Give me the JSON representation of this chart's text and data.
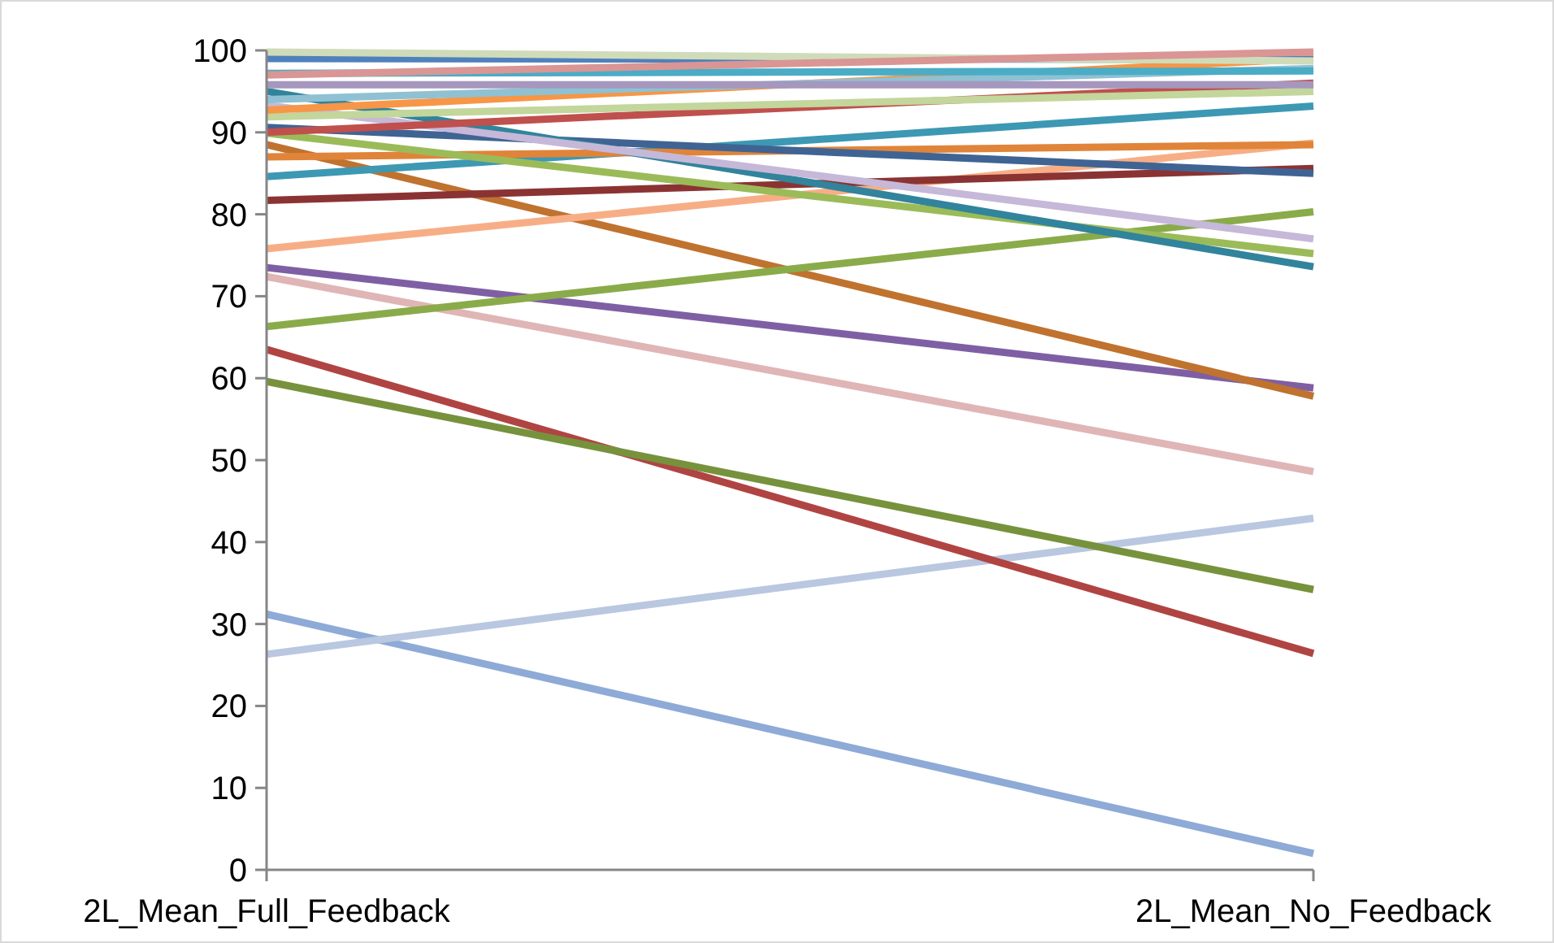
{
  "chart_data": {
    "type": "line",
    "categories": [
      "2L_Mean_Full_Feedback",
      "2L_Mean_No_Feedback"
    ],
    "ylim": [
      0,
      100
    ],
    "yticks": [
      0,
      10,
      20,
      30,
      40,
      50,
      60,
      70,
      80,
      90,
      100
    ],
    "grid": false,
    "marker": "none",
    "line_style": "solid",
    "series": [
      {
        "color": "#8eaad6",
        "values": [
          31.2,
          2
        ]
      },
      {
        "color": "#b9c7e0",
        "values": [
          26.3,
          42.9
        ]
      },
      {
        "color": "#b04442",
        "values": [
          63.5,
          26.4
        ]
      },
      {
        "color": "#77923c",
        "values": [
          59.6,
          34.2
        ]
      },
      {
        "color": "#e0b5b5",
        "values": [
          72.4,
          48.6
        ]
      },
      {
        "color": "#7f5fa4",
        "values": [
          73.5,
          58.8
        ]
      },
      {
        "color": "#c0722f",
        "values": [
          88.5,
          57.8
        ]
      },
      {
        "color": "#8aab4a",
        "values": [
          66.3,
          80.3
        ]
      },
      {
        "color": "#f7ae86",
        "values": [
          75.8,
          88.7
        ]
      },
      {
        "color": "#8b3333",
        "values": [
          81.7,
          85.6
        ]
      },
      {
        "color": "#3d98b3",
        "values": [
          84.6,
          93.2
        ]
      },
      {
        "color": "#e0843a",
        "values": [
          87,
          88.5
        ]
      },
      {
        "color": "#3f6494",
        "values": [
          90.6,
          85
        ]
      },
      {
        "color": "#9bbb59",
        "values": [
          89.9,
          75.2
        ]
      },
      {
        "color": "#31849b",
        "values": [
          95,
          73.6
        ]
      },
      {
        "color": "#c6b8d8",
        "values": [
          93.3,
          77
        ]
      },
      {
        "color": "#c0504d",
        "values": [
          90,
          96
        ]
      },
      {
        "color": "#c3d69b",
        "values": [
          91.9,
          95
        ]
      },
      {
        "color": "#f79646",
        "values": [
          92.7,
          99
        ]
      },
      {
        "color": "#8fc1d3",
        "values": [
          94,
          97.8
        ]
      },
      {
        "color": "#a597bd",
        "values": [
          95.8,
          95.8
        ]
      },
      {
        "color": "#4bacc6",
        "values": [
          97.2,
          97.5
        ]
      },
      {
        "color": "#4f81bd",
        "values": [
          99,
          98.9
        ]
      },
      {
        "color": "#d0dcb9",
        "values": [
          99.8,
          98.7
        ]
      },
      {
        "color": "#d99694",
        "values": [
          97,
          99.8
        ]
      }
    ]
  }
}
